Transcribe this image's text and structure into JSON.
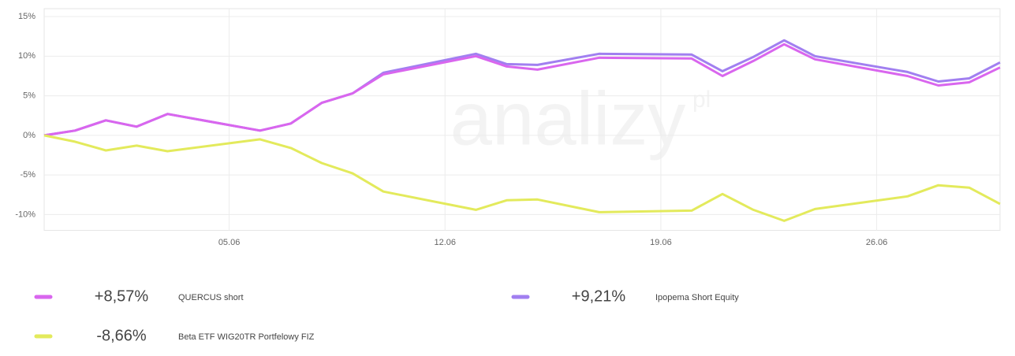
{
  "chart_data": {
    "type": "line",
    "watermark": "analizy",
    "watermark_suffix": "pl",
    "x": [
      0,
      1,
      2,
      3,
      4,
      7,
      8,
      9,
      10,
      11,
      14,
      15,
      16,
      18,
      21,
      22,
      23,
      24,
      25,
      28,
      29,
      30,
      31
    ],
    "xlim": [
      0,
      31
    ],
    "xticks": [
      {
        "value": 6,
        "label": "05.06"
      },
      {
        "value": 13,
        "label": "12.06"
      },
      {
        "value": 20,
        "label": "19.06"
      },
      {
        "value": 27,
        "label": "26.06"
      }
    ],
    "ylim": [
      -12,
      16
    ],
    "yticks": [
      {
        "value": -10,
        "label": "-10%"
      },
      {
        "value": -5,
        "label": "-5%"
      },
      {
        "value": 0,
        "label": "0%"
      },
      {
        "value": 5,
        "label": "5%"
      },
      {
        "value": 10,
        "label": "10%"
      },
      {
        "value": 15,
        "label": "15%"
      }
    ],
    "grid": true,
    "series": [
      {
        "name": "Ipopema Short Equity",
        "color": "#a17ff0",
        "legend_label": "+9,21%",
        "values": [
          0,
          0.6,
          1.9,
          1.1,
          2.7,
          0.6,
          1.5,
          4.1,
          5.3,
          7.9,
          10.3,
          9.0,
          8.9,
          10.3,
          10.2,
          8.1,
          9.9,
          12.0,
          10.0,
          8.0,
          6.8,
          7.2,
          9.21
        ]
      },
      {
        "name": "QUERCUS short",
        "color": "#d966ee",
        "legend_label": "+8,57%",
        "values": [
          0,
          0.6,
          1.9,
          1.1,
          2.7,
          0.6,
          1.5,
          4.1,
          5.3,
          7.7,
          10.0,
          8.7,
          8.3,
          9.8,
          9.7,
          7.5,
          9.4,
          11.5,
          9.6,
          7.5,
          6.3,
          6.7,
          8.57
        ]
      },
      {
        "name": "Beta ETF WIG20TR Portfelowy FIZ",
        "color": "#e3ea5c",
        "legend_label": "-8,66%",
        "values": [
          0,
          -0.8,
          -1.9,
          -1.3,
          -2.0,
          -0.5,
          -1.6,
          -3.5,
          -4.8,
          -7.1,
          -9.4,
          -8.2,
          -8.1,
          -9.7,
          -9.5,
          -7.4,
          -9.4,
          -10.8,
          -9.3,
          -7.7,
          -6.3,
          -6.6,
          -8.66
        ]
      }
    ]
  }
}
